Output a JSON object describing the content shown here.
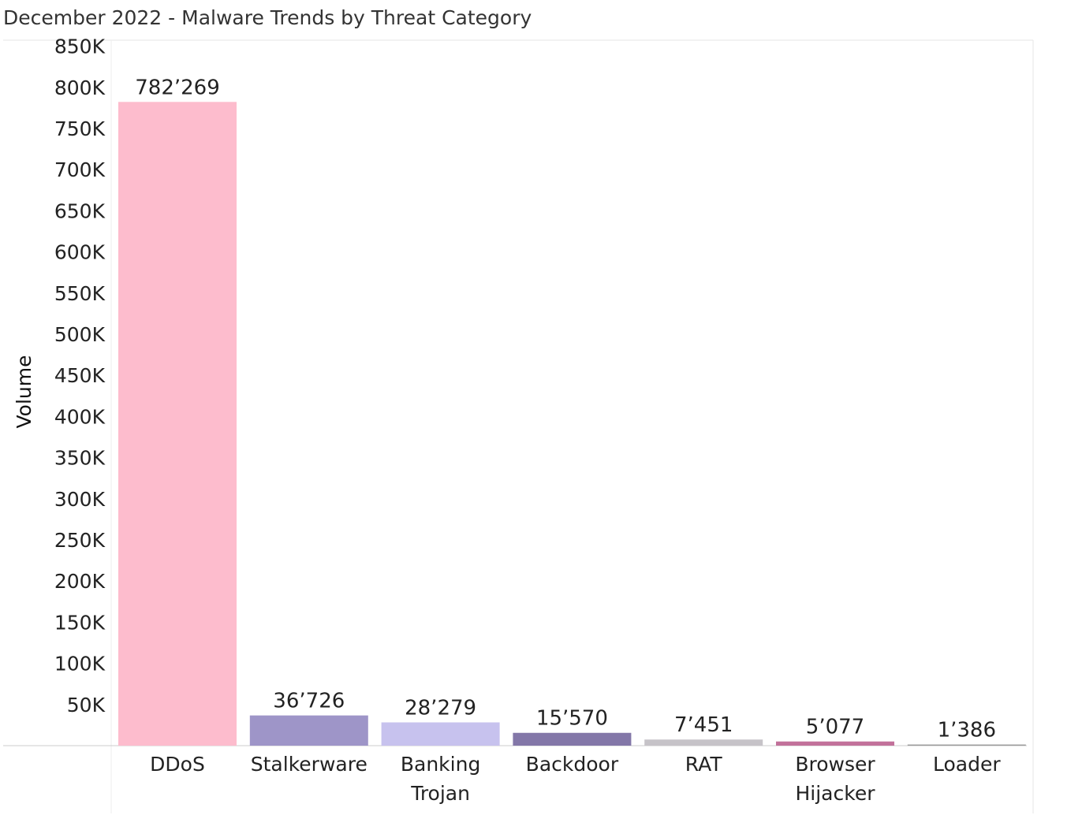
{
  "chart_data": {
    "type": "bar",
    "title": "December 2022 - Malware Trends by Threat Category",
    "xlabel": "",
    "ylabel": "Volume",
    "ylim": [
      0,
      850000
    ],
    "yticks": [
      50000,
      100000,
      150000,
      200000,
      250000,
      300000,
      350000,
      400000,
      450000,
      500000,
      550000,
      600000,
      650000,
      700000,
      750000,
      800000,
      850000
    ],
    "ytick_labels": [
      "50K",
      "100K",
      "150K",
      "200K",
      "250K",
      "300K",
      "350K",
      "400K",
      "450K",
      "500K",
      "550K",
      "600K",
      "650K",
      "700K",
      "750K",
      "800K",
      "850K"
    ],
    "grid": false,
    "legend": "none",
    "categories": [
      [
        "DDoS"
      ],
      [
        "Stalkerware"
      ],
      [
        "Banking",
        "Trojan"
      ],
      [
        "Backdoor"
      ],
      [
        "RAT"
      ],
      [
        "Browser",
        "Hijacker"
      ],
      [
        "Loader"
      ]
    ],
    "values": [
      782269,
      36726,
      28279,
      15570,
      7451,
      5077,
      1386
    ],
    "value_labels": [
      "782’269",
      "36’726",
      "28’279",
      "15’570",
      "7’451",
      "5’077",
      "1’386"
    ],
    "colors": [
      "#fdbccd",
      "#9e95c8",
      "#c7c2ee",
      "#8377a8",
      "#c6c3c8",
      "#c2719a",
      "#9a9a9a"
    ]
  }
}
